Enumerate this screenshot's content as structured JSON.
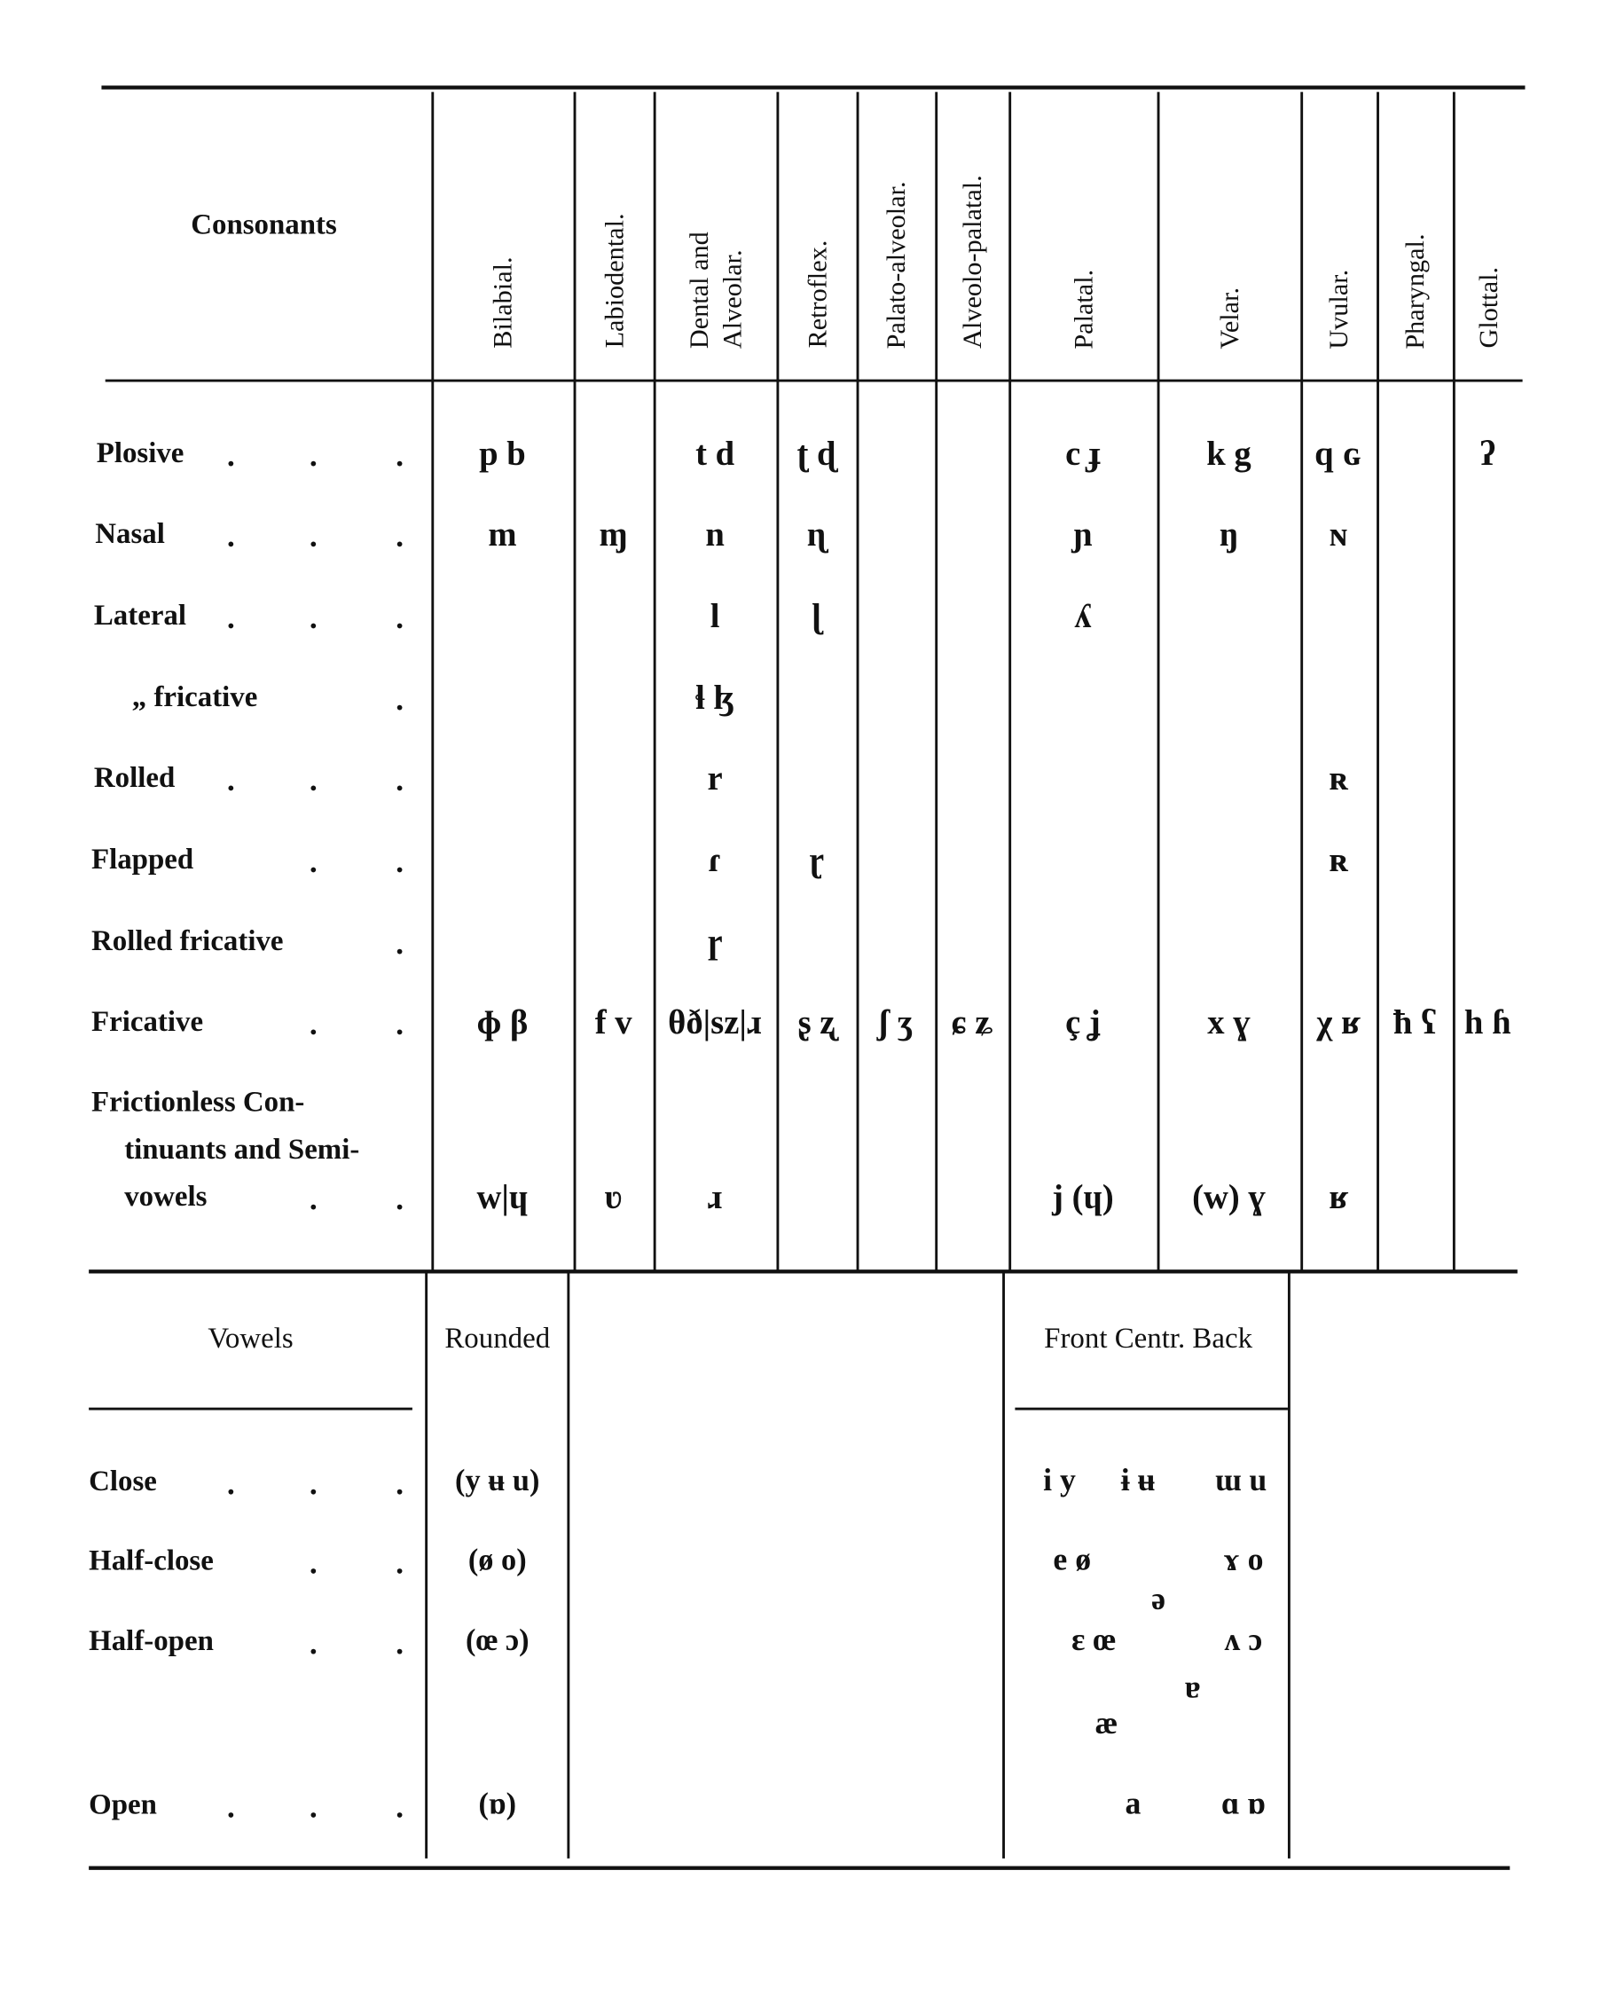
{
  "consonants": {
    "title": "Consonants",
    "columns": [
      "Bilabial.",
      "Labiodental.",
      "Dental and Alveolar.",
      "Retroflex.",
      "Palato-alveolar.",
      "Alveolo-palatal.",
      "Palatal.",
      "Velar.",
      "Uvular.",
      "Pharyngal.",
      "Glottal."
    ],
    "rows": [
      {
        "label": [
          "Plosive"
        ],
        "cells": [
          "p b",
          null,
          "t d",
          "ʈ ɖ",
          null,
          null,
          "c ɟ",
          "k g",
          "q ɢ",
          null,
          "ʔ"
        ]
      },
      {
        "label": [
          "Nasal"
        ],
        "cells": [
          "m",
          "ɱ",
          "n",
          "ɳ",
          null,
          null,
          "ɲ",
          "ŋ",
          "ɴ",
          null,
          null
        ]
      },
      {
        "label": [
          "Lateral"
        ],
        "cells": [
          null,
          null,
          "l",
          "ɭ",
          null,
          null,
          "ʎ",
          null,
          null,
          null,
          null
        ]
      },
      {
        "label": [
          "„ fricative"
        ],
        "cells": [
          null,
          null,
          "ɬ ɮ",
          null,
          null,
          null,
          null,
          null,
          null,
          null,
          null
        ]
      },
      {
        "label": [
          "Rolled"
        ],
        "cells": [
          null,
          null,
          "r",
          null,
          null,
          null,
          null,
          null,
          "ʀ",
          null,
          null
        ]
      },
      {
        "label": [
          "Flapped"
        ],
        "cells": [
          null,
          null,
          "ɾ",
          "ɽ",
          null,
          null,
          null,
          null,
          "ʀ",
          null,
          null
        ]
      },
      {
        "label": [
          "Rolled fricative"
        ],
        "cells": [
          null,
          null,
          "ɼ",
          null,
          null,
          null,
          null,
          null,
          null,
          null,
          null
        ]
      },
      {
        "label": [
          "Fricative"
        ],
        "cells": [
          "ɸ β",
          "f v",
          "θð|sz|ɹ",
          "ʂ ʐ",
          "ʃ ʒ",
          "ɕ ʑ",
          "ç ʝ",
          "x ɣ",
          "χ ʁ",
          "ħ ʕ",
          "h ɦ"
        ]
      },
      {
        "label": [
          "Frictionless Con-",
          "tinuants and Semi-",
          "vowels"
        ],
        "cells": [
          "w|ɥ",
          "ʋ",
          "ɹ",
          null,
          null,
          null,
          "j (ɥ)",
          "(w) ɣ",
          "ʁ",
          null,
          null
        ]
      }
    ]
  },
  "vowels": {
    "title": "Vowels",
    "rounded_header": "Rounded",
    "chart_header": "Front Centr. Back",
    "rows": [
      {
        "label": "Close",
        "rounded": "(y ʉ u)"
      },
      {
        "label": "Half-close",
        "rounded": "(ø o)"
      },
      {
        "label": "Half-open",
        "rounded": "(œ ɔ)"
      },
      {
        "label": "Open",
        "rounded": "(ɒ)"
      }
    ],
    "chart_symbols": [
      "i y",
      "ɨ ʉ",
      "ɯ u",
      "e ø",
      "ɤ o",
      "ə",
      "ɛ œ",
      "ʌ ɔ",
      "ɐ",
      "æ",
      "a",
      "ɑ ɒ"
    ]
  }
}
